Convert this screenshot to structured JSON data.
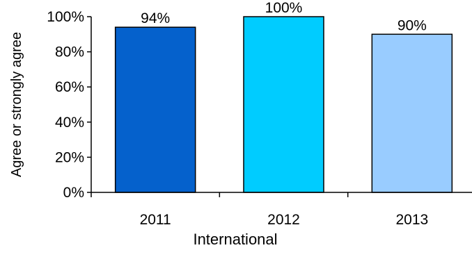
{
  "chart_data": {
    "type": "bar",
    "categories": [
      "2011",
      "2012",
      "2013"
    ],
    "values": [
      94,
      100,
      90
    ],
    "data_labels": [
      "94%",
      "100%",
      "90%"
    ],
    "colors": [
      "#0561CC",
      "#00CCFF",
      "#99CCFF"
    ],
    "ylabel": "Agree or strongly agree",
    "xlabel": "International",
    "xlabel_color": "#3A7CC6",
    "ylim": [
      0,
      100
    ],
    "yticks": [
      0,
      20,
      40,
      60,
      80,
      100
    ],
    "ytick_labels": [
      "0%",
      "20%",
      "40%",
      "60%",
      "80%",
      "100%"
    ],
    "grid": false,
    "legend": "none"
  }
}
